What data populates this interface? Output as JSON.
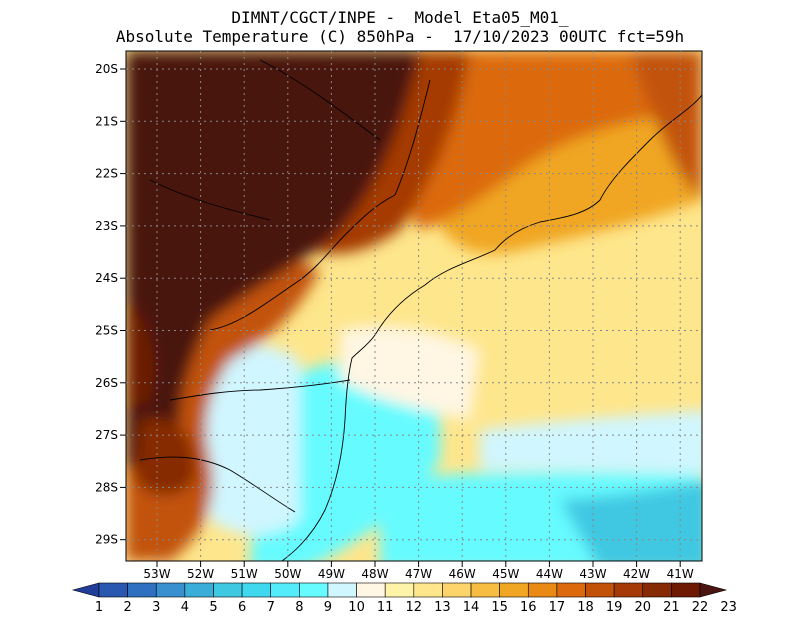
{
  "title": {
    "line1": "DIMNT/CGCT/INPE -  Model Eta05_M01_",
    "line2": "Absolute Temperature (C) 850hPa -  17/10/2023 00UTC fct=59h"
  },
  "map": {
    "lat_labels": [
      "20S",
      "21S",
      "22S",
      "23S",
      "24S",
      "25S",
      "26S",
      "27S",
      "28S",
      "29S"
    ],
    "lon_labels": [
      "53W",
      "52W",
      "51W",
      "50W",
      "49W",
      "48W",
      "47W",
      "46W",
      "45W",
      "44W",
      "43W",
      "42W",
      "41W"
    ]
  },
  "colorbar": {
    "labels": [
      "1",
      "2",
      "3",
      "4",
      "5",
      "6",
      "7",
      "8",
      "9",
      "10",
      "11",
      "12",
      "13",
      "14",
      "15",
      "16",
      "17",
      "18",
      "19",
      "20",
      "21",
      "22",
      "23"
    ],
    "colors": [
      "#1f3d99",
      "#2a58b0",
      "#2f70c0",
      "#3890cf",
      "#3aaed8",
      "#3fc8e2",
      "#40d8ee",
      "#54ecfa",
      "#66fbff",
      "#d0f6ff",
      "#fff6e3",
      "#fff3a8",
      "#fee68c",
      "#fcd46b",
      "#f7bd43",
      "#f0a622",
      "#ea8a16",
      "#dc6a0c",
      "#c25208",
      "#a53a06",
      "#862a04",
      "#6e1a03",
      "#4a1410"
    ]
  }
}
